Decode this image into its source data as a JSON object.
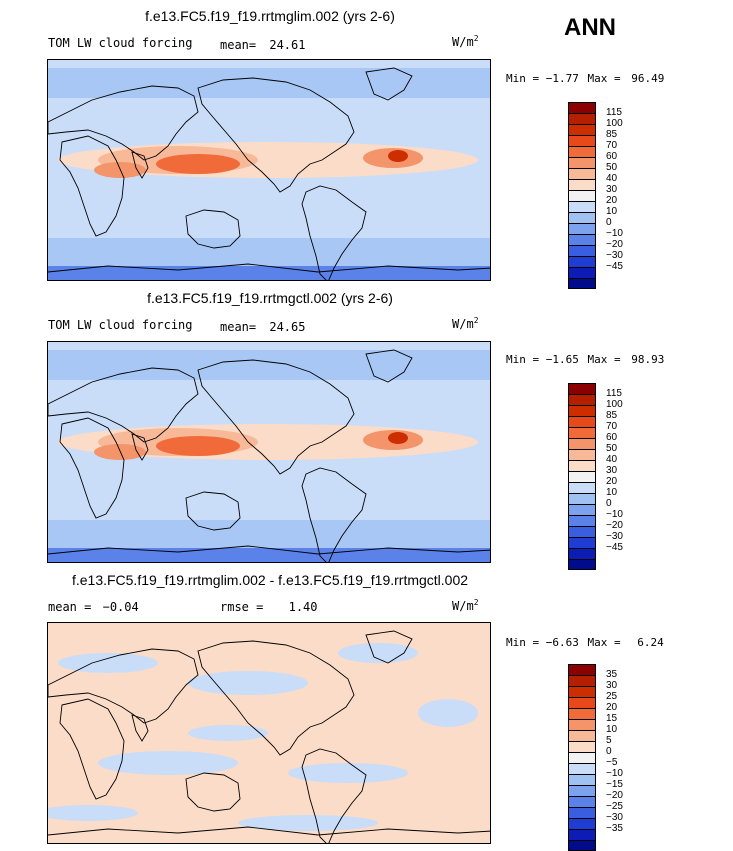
{
  "season": "ANN",
  "units_base": "W/m",
  "units_exp": "2",
  "colors": {
    "cb_levels_abs": [
      "#8b0000",
      "#b41f00",
      "#cc2e00",
      "#e8491a",
      "#f06a3a",
      "#f3946a",
      "#f7b998",
      "#fbdcc8",
      "#f2f2f2",
      "#c9ddf8",
      "#a0c2f3",
      "#7ea3ee",
      "#5a82e8",
      "#3a5ee0",
      "#1f3dd2",
      "#0c1cb4",
      "#000c8c"
    ],
    "cb_levels_diff": [
      "#8b0000",
      "#b41f00",
      "#cc2e00",
      "#e8491a",
      "#f06a3a",
      "#f3946a",
      "#f7b998",
      "#fbdcc8",
      "#f2f2f2",
      "#c9ddf8",
      "#a0c2f3",
      "#7ea3ee",
      "#5a82e8",
      "#3a5ee0",
      "#1f3dd2",
      "#0c1cb4",
      "#000c8c"
    ]
  },
  "panels": [
    {
      "title": "f.e13.FC5.f19_f19.rrtmglim.002 (yrs 2-6)",
      "var_label": "TOM LW cloud forcing",
      "stat_label": "mean=",
      "stat_value": "24.61",
      "min_label": "Min =",
      "min_value": "−1.77",
      "max_label": "Max =",
      "max_value": "96.49",
      "cb_labels": [
        "115",
        "100",
        "85",
        "70",
        "60",
        "50",
        "40",
        "30",
        "20",
        "10",
        "0",
        "−10",
        "−20",
        "−30",
        "−45"
      ]
    },
    {
      "title": "f.e13.FC5.f19_f19.rrtmgctl.002 (yrs 2-6)",
      "var_label": "TOM LW cloud forcing",
      "stat_label": "mean=",
      "stat_value": "24.65",
      "min_label": "Min =",
      "min_value": "−1.65",
      "max_label": "Max =",
      "max_value": "98.93",
      "cb_labels": [
        "115",
        "100",
        "85",
        "70",
        "60",
        "50",
        "40",
        "30",
        "20",
        "10",
        "0",
        "−10",
        "−20",
        "−30",
        "−45"
      ]
    },
    {
      "title": "f.e13.FC5.f19_f19.rrtmglim.002 - f.e13.FC5.f19_f19.rrtmgctl.002",
      "mean_label": "mean =",
      "mean_value": "−0.04",
      "rmse_label": "rmse =",
      "rmse_value": "1.40",
      "min_label": "Min =",
      "min_value": "−6.63",
      "max_label": "Max =",
      "max_value": "6.24",
      "cb_labels": [
        "35",
        "30",
        "25",
        "20",
        "15",
        "10",
        "5",
        "0",
        "−5",
        "−10",
        "−15",
        "−20",
        "−25",
        "−30",
        "−35"
      ]
    }
  ]
}
